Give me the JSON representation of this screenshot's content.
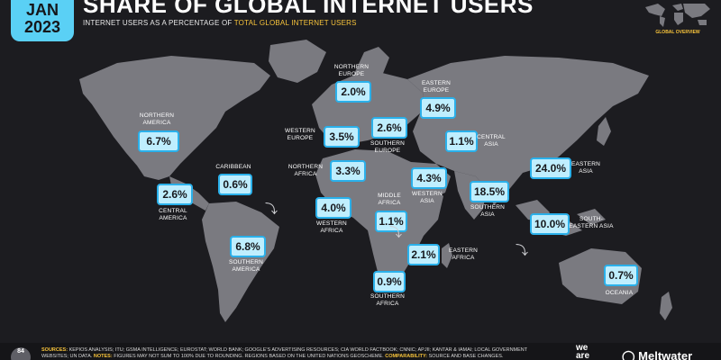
{
  "header": {
    "date_month": "JAN",
    "date_year": "2023",
    "title": "SHARE OF GLOBAL INTERNET USERS",
    "subtitle_prefix": "INTERNET USERS AS A PERCENTAGE OF ",
    "subtitle_highlight": "TOTAL GLOBAL INTERNET USERS",
    "overview_label": "GLOBAL OVERVIEW"
  },
  "colors": {
    "background": "#1c1c20",
    "land": "#7a7a80",
    "box_fill": "#bfeefe",
    "box_border": "#2ab0ea",
    "accent": "#f7c33b",
    "badge": "#5ad0f5"
  },
  "regions": [
    {
      "key": "northern_america",
      "name": "NORTHERN AMERICA",
      "value": "6.7%"
    },
    {
      "key": "caribbean",
      "name": "CARIBBEAN",
      "value": "0.6%"
    },
    {
      "key": "central_america",
      "name": "CENTRAL AMERICA",
      "value": "2.6%"
    },
    {
      "key": "southern_america",
      "name": "SOUTHERN AMERICA",
      "value": "6.8%"
    },
    {
      "key": "northern_europe",
      "name": "NORTHERN EUROPE",
      "value": "2.0%"
    },
    {
      "key": "western_europe",
      "name": "WESTERN EUROPE",
      "value": "3.5%"
    },
    {
      "key": "southern_europe",
      "name": "SOUTHERN EUROPE",
      "value": "2.6%"
    },
    {
      "key": "eastern_europe",
      "name": "EASTERN EUROPE",
      "value": "4.9%"
    },
    {
      "key": "central_asia",
      "name": "CENTRAL ASIA",
      "value": "1.1%"
    },
    {
      "key": "northern_africa",
      "name": "NORTHERN AFRICA",
      "value": "3.3%"
    },
    {
      "key": "western_asia",
      "name": "WESTERN ASIA",
      "value": "4.3%"
    },
    {
      "key": "southern_asia",
      "name": "SOUTHERN ASIA",
      "value": "18.5%"
    },
    {
      "key": "eastern_asia",
      "name": "EASTERN ASIA",
      "value": "24.0%"
    },
    {
      "key": "western_africa",
      "name": "WESTERN AFRICA",
      "value": "4.0%"
    },
    {
      "key": "middle_africa",
      "name": "MIDDLE AFRICA",
      "value": "1.1%"
    },
    {
      "key": "eastern_africa",
      "name": "EASTERN AFRICA",
      "value": "2.1%"
    },
    {
      "key": "south_eastern_asia",
      "name": "SOUTH-EASTERN ASIA",
      "value": "10.0%"
    },
    {
      "key": "southern_africa",
      "name": "SOUTHERN AFRICA",
      "value": "0.9%"
    },
    {
      "key": "oceania",
      "name": "OCEANIA",
      "value": "0.7%"
    }
  ],
  "footer": {
    "page_number": "84",
    "sources_label": "SOURCES:",
    "sources_text": "KEPIOS ANALYSIS; ITU; GSMA INTELLIGENCE; EUROSTAT; WORLD BANK; GOOGLE'S ADVERTISING RESOURCES; CIA WORLD FACTBOOK; CNNIC; APJII; KANTAR & IAMAI; LOCAL GOVERNMENT WEBSITES; UN DATA.",
    "notes_label": "NOTES:",
    "notes_text": "FIGURES MAY NOT SUM TO 100% DUE TO ROUNDING. REGIONS BASED ON THE UNITED NATIONS GEOSCHEME.",
    "comparability_label": "COMPARABILITY:",
    "comparability_text": "SOURCE AND BASE CHANGES.",
    "logo_we_line1": "we",
    "logo_we_line2": "are",
    "logo_meltwater": "Meltwater"
  }
}
